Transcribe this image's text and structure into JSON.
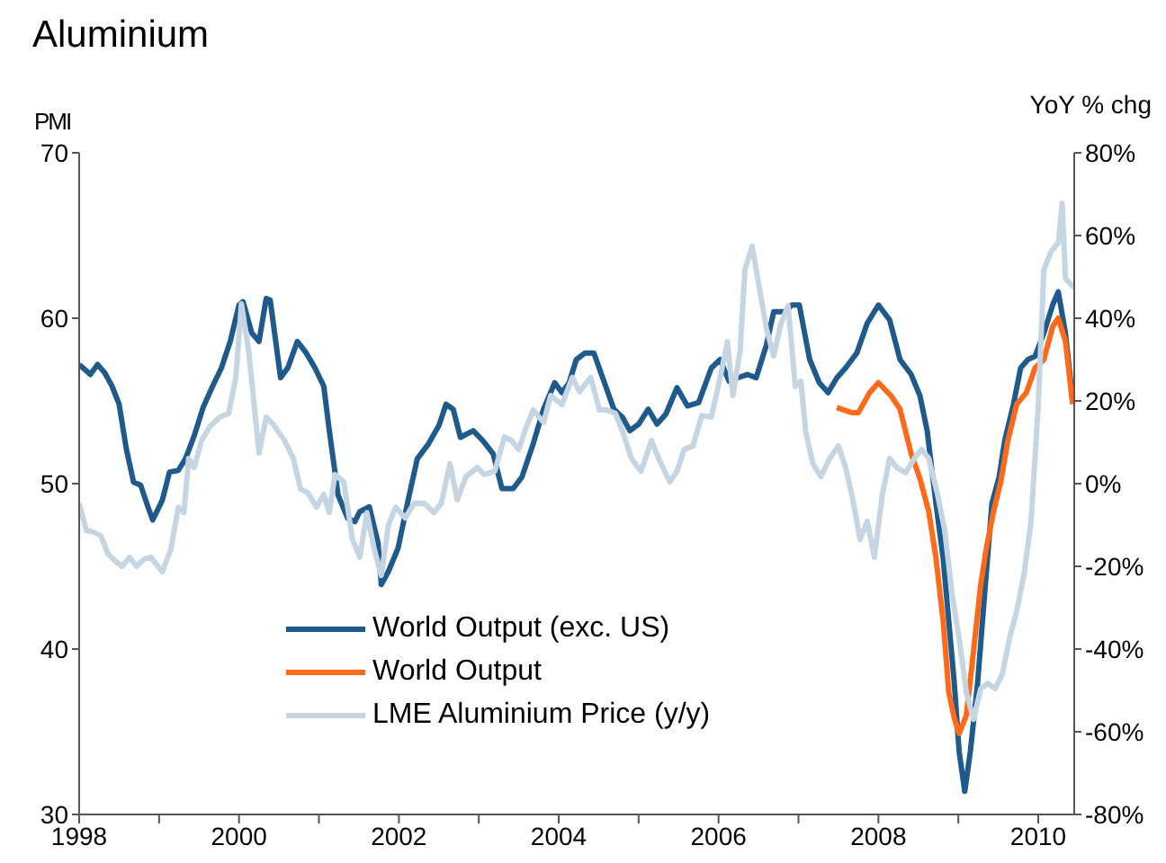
{
  "chart_data": {
    "type": "line",
    "title": "Aluminium",
    "ylabel": "PMI",
    "y2label": "YoY % chg",
    "xlim": [
      1998,
      2010.45
    ],
    "xticks": [
      1998,
      {
        "value": 1999,
        "label": null
      },
      2000,
      {
        "value": 2001,
        "label": null
      },
      2002,
      {
        "value": 2003,
        "label": null
      },
      2004,
      {
        "value": 2005,
        "label": null
      },
      2006,
      {
        "value": 2007,
        "label": null
      },
      2008,
      {
        "value": 2009,
        "label": null
      },
      2010
    ],
    "ylim": [
      30,
      70
    ],
    "yticks": [
      30,
      40,
      50,
      60,
      70
    ],
    "y2lim": [
      -80,
      80
    ],
    "y2ticks": [
      {
        "value": -80,
        "label": "-80%"
      },
      {
        "value": -60,
        "label": "-60%"
      },
      {
        "value": -40,
        "label": "-40%"
      },
      {
        "value": -20,
        "label": "-20%"
      },
      {
        "value": 0,
        "label": "0%"
      },
      {
        "value": 20,
        "label": "20%"
      },
      {
        "value": 40,
        "label": "40%"
      },
      {
        "value": 60,
        "label": "60%"
      },
      {
        "value": 80,
        "label": "80%"
      }
    ],
    "grid": false,
    "legend": "bottom",
    "marker": "none",
    "line_style": "solid",
    "series": [
      {
        "name": "World Output (exc. US)",
        "color": "#1f5a8c",
        "x": [
          1998.0,
          1998.14,
          1998.23,
          1998.32,
          1998.41,
          1998.5,
          1998.59,
          1998.68,
          1998.77,
          1998.86,
          1998.92,
          1999.04,
          1999.13,
          1999.24,
          1999.33,
          1999.44,
          1999.55,
          1999.67,
          1999.78,
          1999.89,
          2000.0,
          2000.05,
          2000.16,
          2000.25,
          2000.34,
          2000.39,
          2000.52,
          2000.61,
          2000.73,
          2000.84,
          2000.95,
          2001.06,
          2001.13,
          2001.24,
          2001.36,
          2001.45,
          2001.51,
          2001.63,
          2001.74,
          2001.78,
          2001.87,
          2001.99,
          2002.12,
          2002.23,
          2002.37,
          2002.5,
          2002.59,
          2002.68,
          2002.77,
          2002.93,
          2003.05,
          2003.18,
          2003.29,
          2003.43,
          2003.54,
          2003.68,
          2003.81,
          2003.95,
          2004.04,
          2004.13,
          2004.22,
          2004.33,
          2004.44,
          2004.55,
          2004.69,
          2004.8,
          2004.89,
          2005.0,
          2005.12,
          2005.23,
          2005.34,
          2005.48,
          2005.61,
          2005.75,
          2005.91,
          2006.02,
          2006.13,
          2006.24,
          2006.36,
          2006.47,
          2006.6,
          2006.69,
          2006.83,
          2006.92,
          2007.01,
          2007.14,
          2007.26,
          2007.37,
          2007.48,
          2007.59,
          2007.73,
          2007.86,
          2008.0,
          2008.14,
          2008.27,
          2008.41,
          2008.52,
          2008.61,
          2008.72,
          2008.81,
          2008.88,
          2008.95,
          2009.01,
          2009.08,
          2009.15,
          2009.24,
          2009.33,
          2009.42,
          2009.51,
          2009.58,
          2009.69,
          2009.78,
          2009.87,
          2009.96,
          2010.07,
          2010.18,
          2010.25,
          2010.34,
          2010.43
        ],
        "values": [
          57.2,
          56.6,
          57.2,
          56.7,
          55.9,
          54.8,
          52.1,
          50.1,
          49.9,
          48.6,
          47.8,
          49.0,
          50.7,
          50.8,
          51.5,
          52.9,
          54.6,
          55.9,
          57.0,
          58.6,
          60.8,
          61.0,
          59.1,
          58.6,
          61.2,
          61.1,
          56.4,
          57.0,
          58.6,
          57.9,
          57.0,
          55.9,
          53.2,
          49.3,
          47.9,
          47.7,
          48.3,
          48.6,
          46.4,
          43.9,
          44.7,
          46.1,
          49.1,
          51.5,
          52.4,
          53.5,
          54.8,
          54.5,
          52.8,
          53.2,
          52.6,
          51.8,
          49.7,
          49.7,
          50.4,
          52.4,
          54.5,
          56.1,
          55.5,
          56.1,
          57.5,
          57.9,
          57.9,
          56.4,
          54.5,
          54.0,
          53.2,
          53.6,
          54.5,
          53.6,
          54.2,
          55.8,
          54.7,
          54.9,
          57.0,
          57.5,
          56.2,
          56.4,
          56.6,
          56.4,
          58.4,
          60.4,
          60.4,
          60.8,
          60.8,
          57.5,
          56.1,
          55.5,
          56.4,
          57.0,
          57.9,
          59.7,
          60.8,
          59.9,
          57.5,
          56.6,
          55.3,
          53.2,
          48.8,
          45.5,
          41.7,
          37.9,
          33.8,
          31.4,
          33.8,
          37.9,
          43.4,
          48.8,
          50.4,
          52.6,
          54.8,
          57.0,
          57.5,
          57.7,
          59.1,
          60.8,
          61.6,
          59.1,
          55.1
        ]
      },
      {
        "name": "World Output",
        "color": "#ff6a1a",
        "x": [
          2007.48,
          2007.66,
          2007.75,
          2007.89,
          2008.0,
          2008.16,
          2008.27,
          2008.41,
          2008.52,
          2008.63,
          2008.72,
          2008.81,
          2008.88,
          2008.95,
          2009.01,
          2009.1,
          2009.17,
          2009.28,
          2009.35,
          2009.44,
          2009.53,
          2009.62,
          2009.73,
          2009.85,
          2009.96,
          2010.07,
          2010.18,
          2010.25,
          2010.34,
          2010.43
        ],
        "values": [
          54.6,
          54.3,
          54.3,
          55.5,
          56.1,
          55.3,
          54.5,
          51.8,
          50.3,
          48.3,
          45.5,
          41.7,
          37.4,
          35.8,
          34.9,
          36.0,
          39.0,
          43.9,
          46.1,
          48.3,
          50.1,
          52.6,
          54.8,
          55.5,
          57.0,
          57.5,
          59.5,
          60.0,
          58.6,
          54.8
        ]
      },
      {
        "name": "LME Aluminium Price (y/y)",
        "color": "#c5d5e2",
        "axis": "y2",
        "x": [
          1998.0,
          1998.09,
          1998.18,
          1998.27,
          1998.36,
          1998.45,
          1998.54,
          1998.63,
          1998.72,
          1998.81,
          1998.9,
          1999.04,
          1999.15,
          1999.24,
          1999.31,
          1999.37,
          1999.44,
          1999.53,
          1999.64,
          1999.76,
          1999.87,
          1999.96,
          2000.03,
          2000.12,
          2000.25,
          2000.34,
          2000.43,
          2000.57,
          2000.68,
          2000.77,
          2000.86,
          2000.97,
          2001.06,
          2001.13,
          2001.2,
          2001.31,
          2001.42,
          2001.51,
          2001.6,
          2001.69,
          2001.78,
          2001.87,
          2001.96,
          2002.08,
          2002.19,
          2002.32,
          2002.44,
          2002.53,
          2002.64,
          2002.73,
          2002.84,
          2002.98,
          2003.07,
          2003.2,
          2003.32,
          2003.41,
          2003.5,
          2003.59,
          2003.68,
          2003.81,
          2003.9,
          2004.04,
          2004.17,
          2004.26,
          2004.4,
          2004.51,
          2004.6,
          2004.71,
          2004.8,
          2004.91,
          2005.03,
          2005.16,
          2005.25,
          2005.39,
          2005.48,
          2005.57,
          2005.68,
          2005.79,
          2005.91,
          2006.02,
          2006.11,
          2006.18,
          2006.27,
          2006.33,
          2006.42,
          2006.51,
          2006.6,
          2006.69,
          2006.78,
          2006.87,
          2006.96,
          2007.03,
          2007.09,
          2007.18,
          2007.28,
          2007.39,
          2007.5,
          2007.59,
          2007.68,
          2007.77,
          2007.86,
          2007.95,
          2008.05,
          2008.14,
          2008.23,
          2008.34,
          2008.45,
          2008.54,
          2008.63,
          2008.74,
          2008.83,
          2008.92,
          2009.01,
          2009.1,
          2009.19,
          2009.28,
          2009.37,
          2009.46,
          2009.55,
          2009.64,
          2009.73,
          2009.82,
          2009.91,
          2010.0,
          2010.07,
          2010.16,
          2010.25,
          2010.3,
          2010.34,
          2010.45
        ],
        "values": [
          -4.8,
          -11.3,
          -11.7,
          -12.6,
          -17.0,
          -18.7,
          -20.0,
          -17.8,
          -20.0,
          -18.3,
          -17.8,
          -21.3,
          -15.7,
          -5.7,
          -7.0,
          6.1,
          3.9,
          10.4,
          13.9,
          16.1,
          17.0,
          25.7,
          43.5,
          32.2,
          7.4,
          16.1,
          14.3,
          10.4,
          6.1,
          -1.3,
          -2.2,
          -5.7,
          -2.6,
          -7.0,
          2.2,
          0.4,
          -13.5,
          -17.8,
          -7.0,
          -15.7,
          -22.2,
          -10.0,
          -5.7,
          -8.3,
          -4.8,
          -4.8,
          -7.0,
          -4.8,
          4.8,
          -3.9,
          1.7,
          3.9,
          2.2,
          3.0,
          11.3,
          10.4,
          8.3,
          13.5,
          17.8,
          14.8,
          21.3,
          19.1,
          25.7,
          22.2,
          25.7,
          17.8,
          17.8,
          17.0,
          12.6,
          6.1,
          3.0,
          10.4,
          6.1,
          0.4,
          3.0,
          8.3,
          9.1,
          16.5,
          16.1,
          25.7,
          34.3,
          21.3,
          32.2,
          51.7,
          57.4,
          47.4,
          37.4,
          30.9,
          38.7,
          43.0,
          23.5,
          24.8,
          12.6,
          4.8,
          1.7,
          6.1,
          9.1,
          3.9,
          -3.9,
          -13.5,
          -9.1,
          -17.8,
          -2.6,
          6.1,
          3.9,
          2.6,
          6.1,
          8.3,
          6.1,
          -2.6,
          -11.3,
          -26.5,
          -37.4,
          -50.4,
          -57.0,
          -49.6,
          -48.3,
          -49.6,
          -46.1,
          -37.4,
          -30.9,
          -22.2,
          -9.1,
          19.1,
          51.7,
          56.1,
          58.3,
          67.8,
          49.6,
          47.4
        ]
      }
    ]
  }
}
